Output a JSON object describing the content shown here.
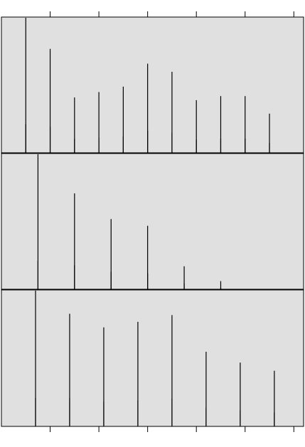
{
  "chart_data": {
    "type": "bar",
    "title": "",
    "xlabel": "",
    "ylabel": "",
    "grid": false,
    "legend": "none",
    "xlim": [
      0,
      6.2
    ],
    "x_ticks": [
      1,
      2,
      3,
      4,
      5,
      6
    ],
    "panels": [
      {
        "name": "",
        "ylim": [
          0,
          1
        ],
        "x": [
          0.5,
          1.0,
          1.5,
          2.0,
          2.5,
          3.0,
          3.5,
          4.0,
          4.5,
          5.0,
          5.5
        ],
        "values": [
          1.0,
          0.77,
          0.41,
          0.45,
          0.49,
          0.66,
          0.6,
          0.39,
          0.42,
          0.42,
          0.29
        ]
      },
      {
        "name": "",
        "ylim": [
          0,
          1
        ],
        "x": [
          0.75,
          1.5,
          2.25,
          3.0,
          3.75,
          4.5
        ],
        "values": [
          1.0,
          0.71,
          0.52,
          0.47,
          0.17,
          0.06
        ]
      },
      {
        "name": "",
        "ylim": [
          0,
          1
        ],
        "x": [
          0.7,
          1.4,
          2.1,
          2.8,
          3.5,
          4.2,
          4.9,
          5.6
        ],
        "values": [
          1.0,
          0.83,
          0.73,
          0.77,
          0.82,
          0.55,
          0.47,
          0.41
        ]
      }
    ],
    "colors": {
      "background": "#e0e0e0",
      "spike": "#000000"
    }
  }
}
